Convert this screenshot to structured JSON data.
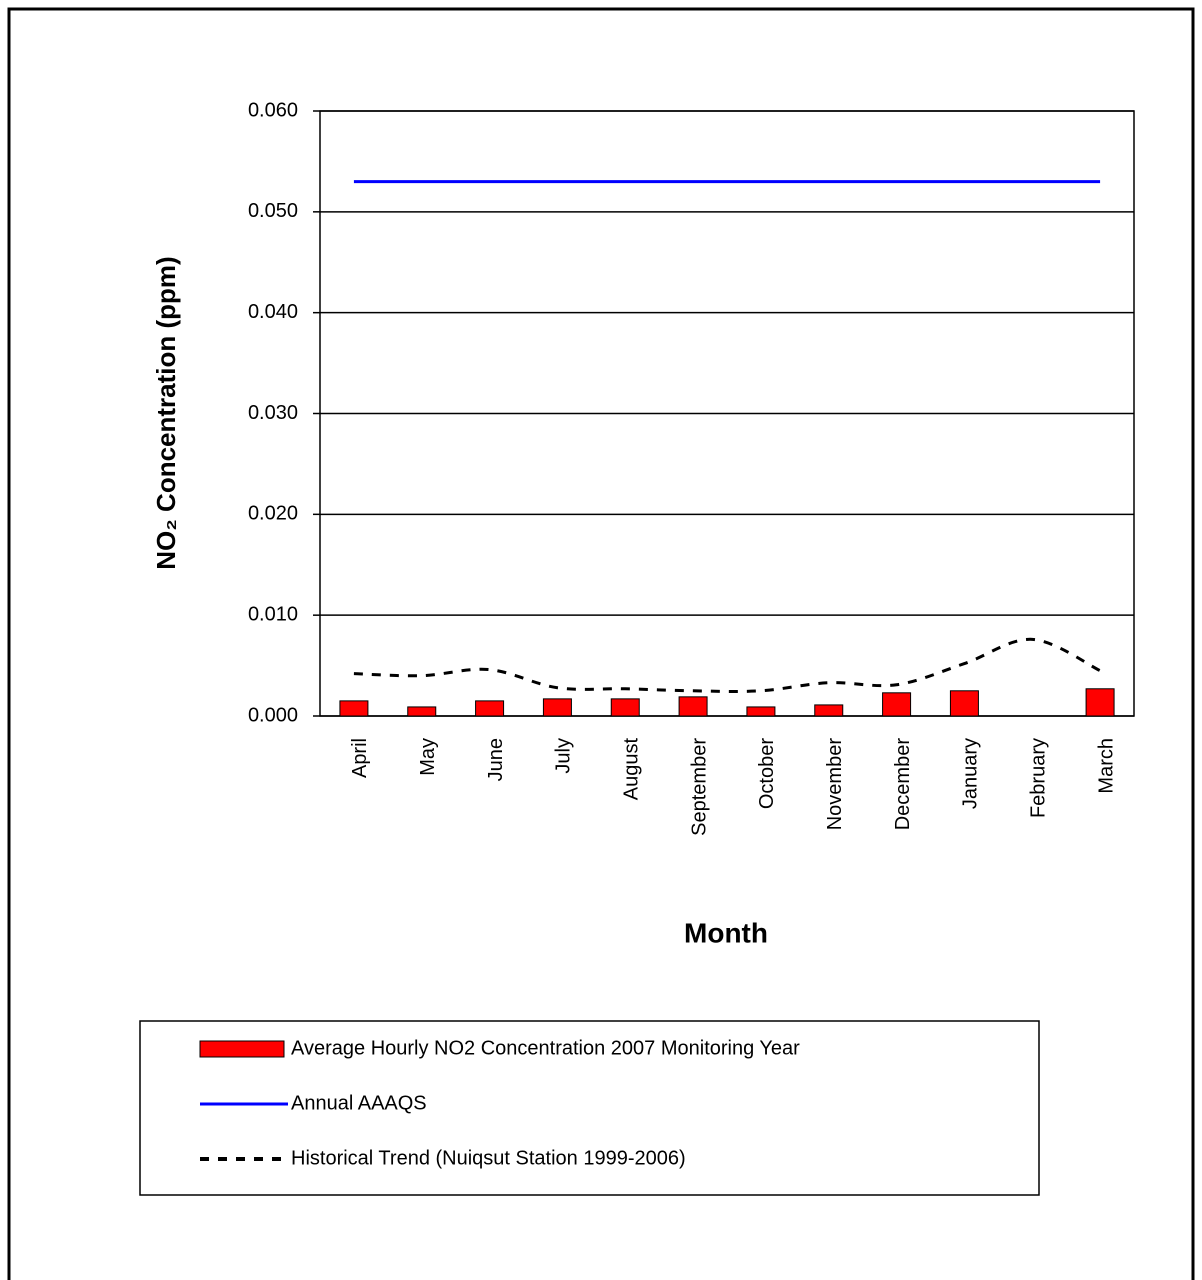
{
  "chart_data": {
    "type": "bar",
    "y_label": "NO₂ Concentration (ppm)",
    "x_label": "Month",
    "categories": [
      "April",
      "May",
      "June",
      "July",
      "August",
      "September",
      "October",
      "November",
      "December",
      "January",
      "February",
      "March"
    ],
    "series": [
      {
        "name": "Average Hourly NO2 Concentration 2007 Monitoring Year",
        "type": "bar",
        "color": "#ff0000",
        "values": [
          0.0015,
          0.0009,
          0.0015,
          0.0017,
          0.0017,
          0.0019,
          0.0009,
          0.0011,
          0.0023,
          0.0025,
          null,
          0.0027
        ]
      },
      {
        "name": "Annual AAAQS",
        "type": "line",
        "color": "#0000ff",
        "values": [
          0.053,
          0.053,
          0.053,
          0.053,
          0.053,
          0.053,
          0.053,
          0.053,
          0.053,
          0.053,
          0.053,
          0.053
        ]
      },
      {
        "name": "Historical Trend (Nuiqsut Station 1999-2006)",
        "type": "dashed-line",
        "color": "#000000",
        "values": [
          0.0042,
          0.004,
          0.0046,
          0.0028,
          0.0027,
          0.0025,
          0.0025,
          0.0033,
          0.0031,
          0.0052,
          0.0076,
          0.0045
        ]
      }
    ],
    "ylim": [
      0,
      0.06
    ],
    "yticks": [
      {
        "value": 0,
        "label": "0.000"
      },
      {
        "value": 0.01,
        "label": "0.010"
      },
      {
        "value": 0.02,
        "label": "0.020"
      },
      {
        "value": 0.03,
        "label": "0.030"
      },
      {
        "value": 0.04,
        "label": "0.040"
      },
      {
        "value": 0.05,
        "label": "0.050"
      },
      {
        "value": 0.06,
        "label": "0.060"
      }
    ],
    "grid": true,
    "legend": "bottom"
  }
}
